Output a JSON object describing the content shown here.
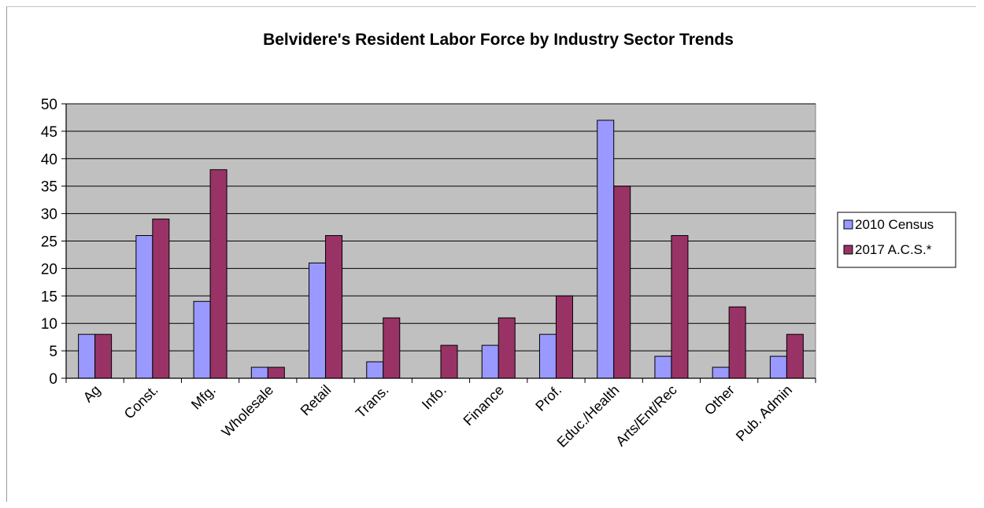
{
  "chart_data": {
    "type": "bar",
    "title": "Belvidere's Resident Labor Force by Industry Sector Trends",
    "xlabel": "",
    "ylabel": "",
    "ylim": [
      0,
      50
    ],
    "ytick_step": 5,
    "grid": true,
    "legend_position": "right",
    "plot_background": "#c0c0c0",
    "categories": [
      "Ag",
      "Const.",
      "Mfg.",
      "Wholesale",
      "Retail",
      "Trans.",
      "Info.",
      "Finance",
      "Prof.",
      "Educ./Health",
      "Arts/Ent/Rec",
      "Other",
      "Pub. Admin"
    ],
    "series": [
      {
        "name": "2010 Census",
        "color": "#9999ff",
        "values": [
          8,
          26,
          14,
          2,
          21,
          3,
          0,
          6,
          8,
          47,
          4,
          2,
          4
        ]
      },
      {
        "name": "2017 A.C.S.*",
        "color": "#993366",
        "values": [
          8,
          29,
          38,
          2,
          26,
          11,
          6,
          11,
          15,
          35,
          26,
          13,
          8
        ]
      }
    ]
  }
}
